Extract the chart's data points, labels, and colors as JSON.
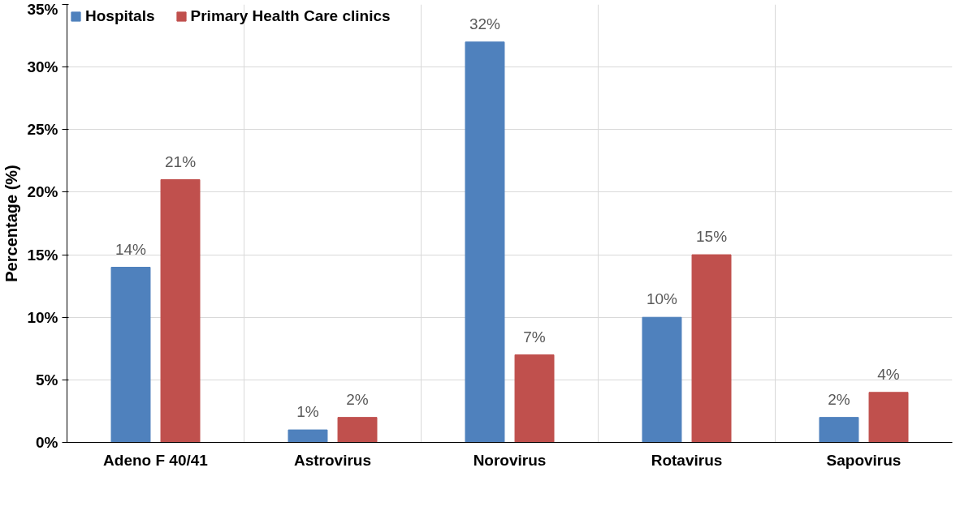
{
  "chart_data": {
    "type": "bar",
    "ylabel": "Percentage (%)",
    "categories": [
      "Adeno F 40/41",
      "Astrovirus",
      "Norovirus",
      "Rotavirus",
      "Sapovirus"
    ],
    "series": [
      {
        "name": "Hospitals",
        "color": "#4f81bd",
        "values": [
          14,
          1,
          32,
          10,
          2
        ],
        "value_labels": [
          "14%",
          "1%",
          "32%",
          "10%",
          "2%"
        ]
      },
      {
        "name": "Primary Health Care clinics",
        "color": "#c0504d",
        "values": [
          21,
          2,
          7,
          15,
          4
        ],
        "value_labels": [
          "21%",
          "2%",
          "7%",
          "15%",
          "4%"
        ]
      }
    ],
    "ylim": [
      0,
      35
    ],
    "yticks": [
      {
        "value": 0,
        "label": "0%"
      },
      {
        "value": 5,
        "label": "5%"
      },
      {
        "value": 10,
        "label": "10%"
      },
      {
        "value": 15,
        "label": "15%"
      },
      {
        "value": 20,
        "label": "20%"
      },
      {
        "value": 25,
        "label": "25%"
      },
      {
        "value": 30,
        "label": "30%"
      },
      {
        "value": 35,
        "label": "35%"
      }
    ],
    "grid": true,
    "legend": "top"
  }
}
